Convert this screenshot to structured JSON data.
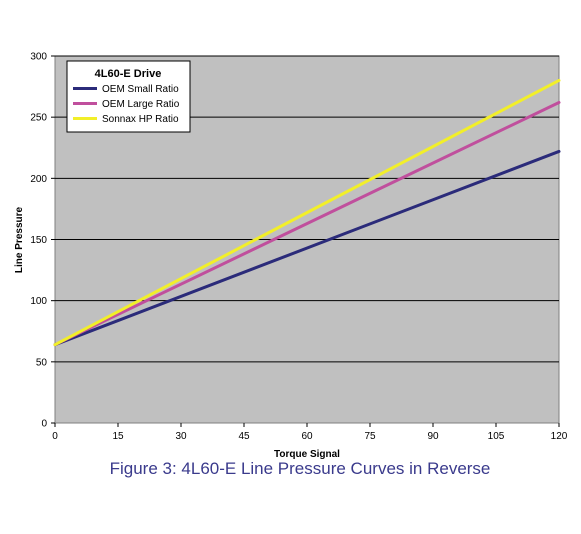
{
  "caption": "Figure 3: 4L60-E Line Pressure Curves in Reverse",
  "chart_data": {
    "type": "line",
    "title": "",
    "xlabel": "Torque Signal",
    "ylabel": "Line Pressure",
    "xlim": [
      0,
      120
    ],
    "ylim": [
      0,
      300
    ],
    "x_ticks": [
      0,
      15,
      30,
      45,
      60,
      75,
      90,
      105,
      120
    ],
    "y_ticks": [
      0,
      50,
      100,
      150,
      200,
      250,
      300
    ],
    "grid": "horizontal",
    "background": "#c0c0c0",
    "legend": {
      "title": "4L60-E Drive",
      "placement": "top-left"
    },
    "x": [
      0,
      120
    ],
    "series": [
      {
        "name": "OEM Small Ratio",
        "color": "#2b2b7a",
        "values": [
          64,
          222
        ]
      },
      {
        "name": "OEM Large Ratio",
        "color": "#c04f9d",
        "values": [
          64,
          262
        ]
      },
      {
        "name": "Sonnax HP Ratio",
        "color": "#f2ef29",
        "values": [
          64,
          280
        ]
      }
    ]
  }
}
